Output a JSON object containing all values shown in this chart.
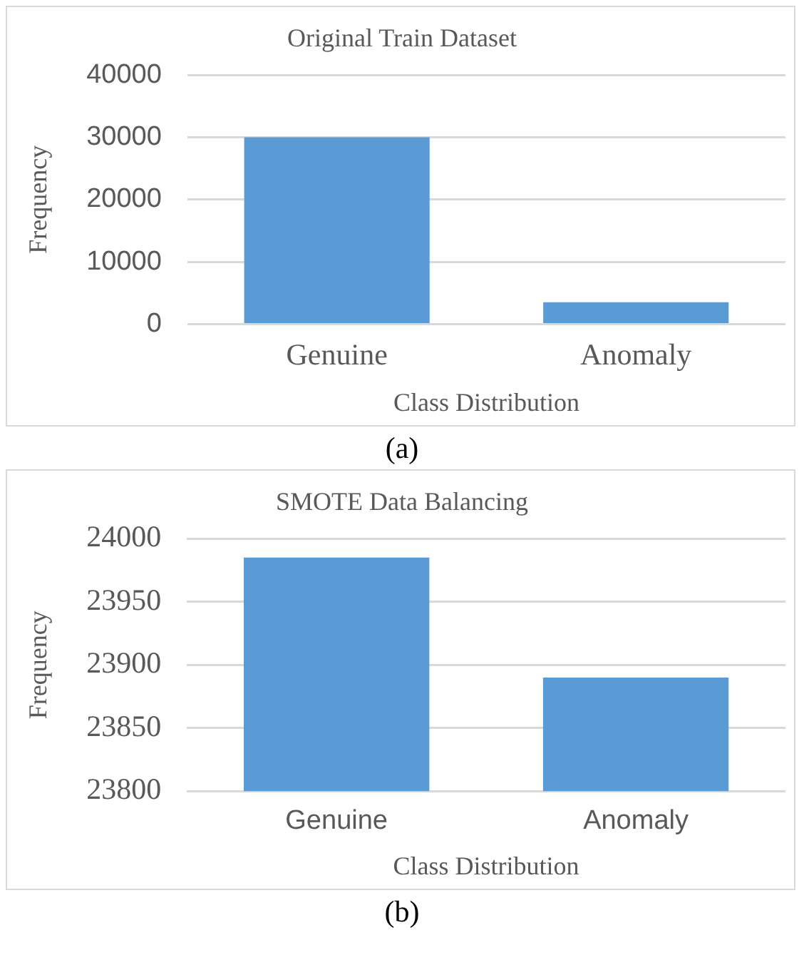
{
  "chart_data": [
    {
      "type": "bar",
      "title": "Original Train Dataset",
      "xlabel": "Class Distribution",
      "ylabel": "Frequency",
      "categories": [
        "Genuine",
        "Anomaly"
      ],
      "values": [
        30000,
        3500
      ],
      "color": "#5b9bd5",
      "ylim": [
        0,
        40000
      ],
      "yticks": [
        0,
        10000,
        20000,
        30000,
        40000
      ],
      "grid": "y",
      "annotations": [
        "(a)"
      ]
    },
    {
      "type": "bar",
      "title": "SMOTE Data Balancing",
      "xlabel": "Class Distribution",
      "ylabel": "Frequency",
      "categories": [
        "Genuine",
        "Anomaly"
      ],
      "values": [
        23985,
        23890
      ],
      "color": "#5b9bd5",
      "ylim": [
        23800,
        24000
      ],
      "yticks": [
        23800,
        23850,
        23900,
        23950,
        24000
      ],
      "grid": "y",
      "annotations": [
        "(b)"
      ]
    }
  ]
}
